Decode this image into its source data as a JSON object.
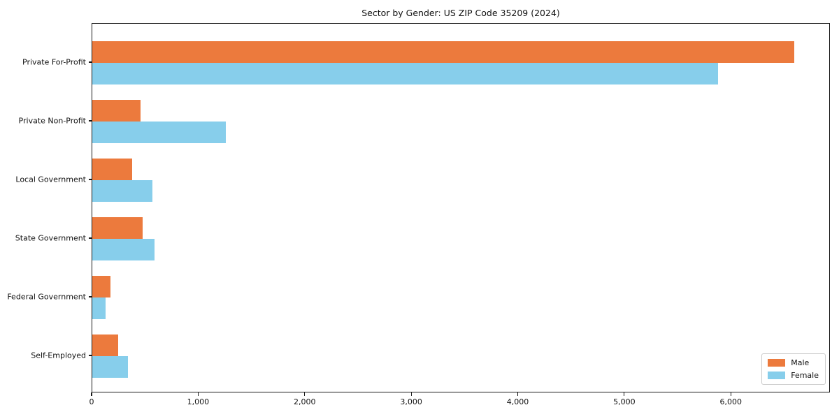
{
  "chart_data": {
    "type": "bar",
    "orientation": "horizontal",
    "title": "Sector by Gender: US ZIP Code 35209 (2024)",
    "categories": [
      "Private For-Profit",
      "Private Non-Profit",
      "Local Government",
      "State Government",
      "Federal Government",
      "Self-Employed"
    ],
    "series": [
      {
        "name": "Male",
        "color": "#EC7A3D",
        "values": [
          6590,
          455,
          375,
          470,
          170,
          245
        ]
      },
      {
        "name": "Female",
        "color": "#87CEEB",
        "values": [
          5870,
          1250,
          565,
          585,
          125,
          335
        ]
      }
    ],
    "xlabel": "",
    "ylabel": "",
    "xlim": [
      0,
      6930
    ],
    "xticks": [
      0,
      1000,
      2000,
      3000,
      4000,
      5000,
      6000
    ],
    "xtick_labels": [
      "0",
      "1,000",
      "2,000",
      "3,000",
      "4,000",
      "5,000",
      "6,000"
    ],
    "grid": false,
    "legend_position": "lower right"
  }
}
